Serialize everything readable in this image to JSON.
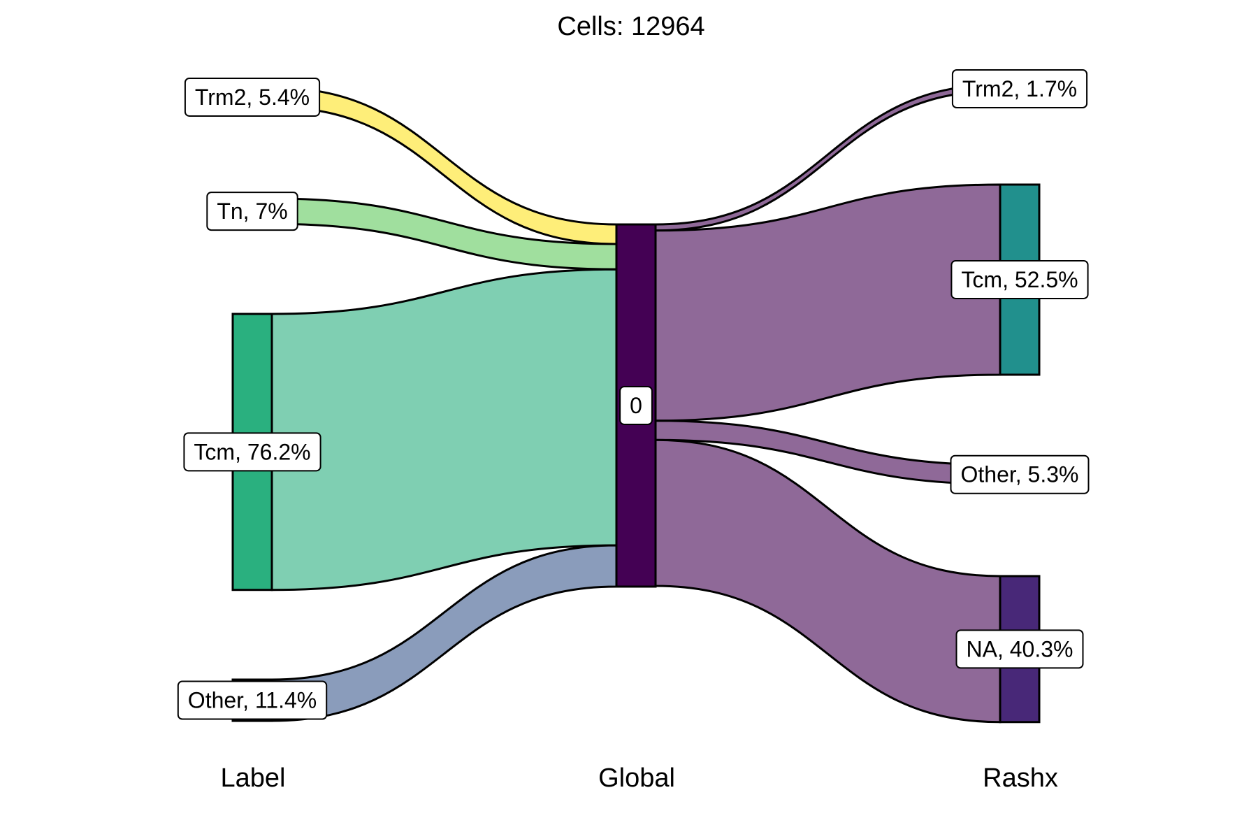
{
  "chart_data": {
    "type": "sankey",
    "title": "Cells:  12964",
    "axes": [
      "Label",
      "Global",
      "Rashx"
    ],
    "total": 12964,
    "nodes": {
      "Label": [
        {
          "id": "L_Trm2",
          "name": "Trm2",
          "percent": 5.4,
          "label": "Trm2, 5.4%",
          "color": "#FDE725",
          "flow_color": "#FEEE79"
        },
        {
          "id": "L_Tn",
          "name": "Tn",
          "percent": 7.0,
          "label": "Tn, 7%",
          "color": "#7AD151",
          "flow_color": "#A0DF9E"
        },
        {
          "id": "L_Tcm",
          "name": "Tcm",
          "percent": 76.2,
          "label": "Tcm, 76.2%",
          "color": "#2AB07F",
          "flow_color": "#7FCFB2"
        },
        {
          "id": "L_Other",
          "name": "Other",
          "percent": 11.4,
          "label": "Other, 11.4%",
          "color": "#5470A0",
          "flow_color": "#8A9CBB"
        }
      ],
      "Global": [
        {
          "id": "G_0",
          "name": "0",
          "percent": 100,
          "label": "0",
          "color": "#440154",
          "flow_color": "#8F6998"
        }
      ],
      "Rashx": [
        {
          "id": "R_Trm2",
          "name": "Trm2",
          "percent": 1.7,
          "label": "Trm2, 1.7%",
          "color": "#8F6998"
        },
        {
          "id": "R_Tcm",
          "name": "Tcm",
          "percent": 52.5,
          "label": "Tcm, 52.5%",
          "color": "#21908D"
        },
        {
          "id": "R_Other",
          "name": "Other",
          "percent": 5.3,
          "label": "Other, 5.3%",
          "color": "#8F6998"
        },
        {
          "id": "R_NA",
          "name": "NA",
          "percent": 40.3,
          "label": "NA, 40.3%",
          "color": "#482878"
        }
      ]
    },
    "flows": [
      {
        "from": "L_Trm2",
        "to": "G_0",
        "percent": 5.4
      },
      {
        "from": "L_Tn",
        "to": "G_0",
        "percent": 7.0
      },
      {
        "from": "L_Tcm",
        "to": "G_0",
        "percent": 76.2
      },
      {
        "from": "L_Other",
        "to": "G_0",
        "percent": 11.4
      },
      {
        "from": "G_0",
        "to": "R_Trm2",
        "percent": 1.7
      },
      {
        "from": "G_0",
        "to": "R_Tcm",
        "percent": 52.5
      },
      {
        "from": "G_0",
        "to": "R_Other",
        "percent": 5.3
      },
      {
        "from": "G_0",
        "to": "R_NA",
        "percent": 40.3
      }
    ]
  }
}
